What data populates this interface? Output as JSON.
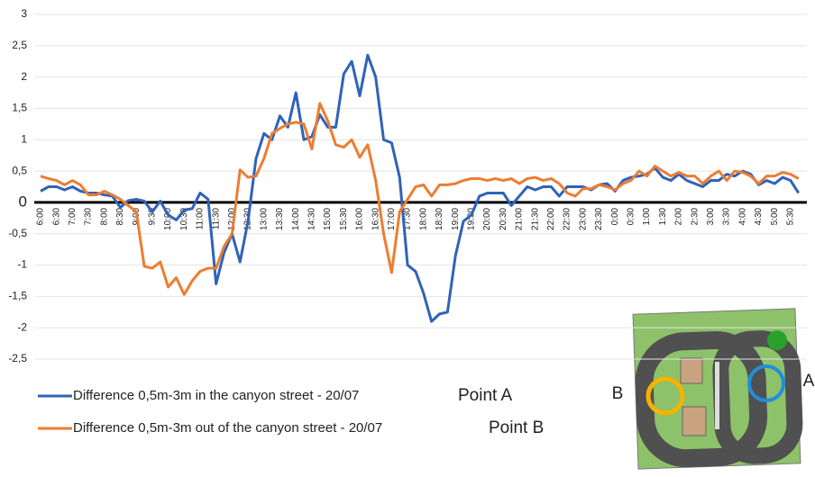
{
  "chart_data": {
    "type": "line",
    "categories": [
      "6:00",
      null,
      "6:30",
      null,
      "7:00",
      null,
      "7:30",
      null,
      "8:00",
      null,
      "8:30",
      null,
      "9:00",
      null,
      "9:30",
      null,
      "10:00",
      null,
      "10:30",
      null,
      "11:00",
      null,
      "11:30",
      null,
      "12:00",
      null,
      "12:30",
      null,
      "13:00",
      null,
      "13:30",
      null,
      "14:00",
      null,
      "14:30",
      null,
      "15:00",
      null,
      "15:30",
      null,
      "16:00",
      null,
      "16:30",
      null,
      "17:00",
      null,
      "17:30",
      null,
      "18:00",
      null,
      "18:30",
      null,
      "19:00",
      null,
      "19:30",
      null,
      "20:00",
      null,
      "20:30",
      null,
      "21:00",
      null,
      "21:30",
      null,
      "22:00",
      null,
      "22:30",
      null,
      "23:00",
      null,
      "23:30",
      null,
      "0:00",
      null,
      "0:30",
      null,
      "1:00",
      null,
      "1:30",
      null,
      "2:00",
      null,
      "2:30",
      null,
      "3:00",
      null,
      "3:30",
      null,
      "4:00",
      null,
      "4:30",
      null,
      "5:00",
      null,
      "5:30",
      null
    ],
    "series": [
      {
        "name": "Difference 0,5m-3m in the canyon street - 20/07",
        "color": "#2e63b8",
        "values": [
          0.18,
          0.25,
          0.25,
          0.2,
          0.25,
          0.18,
          0.15,
          0.15,
          0.12,
          0.1,
          -0.08,
          0.03,
          0.05,
          0.02,
          -0.15,
          0.02,
          -0.2,
          -0.28,
          -0.12,
          -0.1,
          0.15,
          0.05,
          -1.3,
          -0.8,
          -0.5,
          -0.95,
          -0.3,
          0.7,
          1.1,
          1.0,
          1.38,
          1.2,
          1.75,
          1.0,
          1.05,
          1.4,
          1.2,
          1.2,
          2.05,
          2.25,
          1.7,
          2.35,
          2.0,
          1.0,
          0.95,
          0.4,
          -1.0,
          -1.1,
          -1.45,
          -1.9,
          -1.78,
          -1.75,
          -0.85,
          -0.3,
          -0.2,
          0.1,
          0.15,
          0.15,
          0.15,
          -0.05,
          0.1,
          0.25,
          0.2,
          0.25,
          0.25,
          0.1,
          0.25,
          0.25,
          0.25,
          0.2,
          0.28,
          0.3,
          0.18,
          0.35,
          0.4,
          0.42,
          0.45,
          0.55,
          0.4,
          0.35,
          0.45,
          0.35,
          0.3,
          0.25,
          0.35,
          0.35,
          0.45,
          0.42,
          0.5,
          0.45,
          0.28,
          0.35,
          0.3,
          0.4,
          0.35,
          0.15
        ]
      },
      {
        "name": "Difference 0,5m-3m out of the canyon street - 20/07",
        "color": "#ed7d31",
        "values": [
          0.42,
          0.38,
          0.35,
          0.28,
          0.35,
          0.28,
          0.12,
          0.12,
          0.18,
          0.12,
          0.05,
          -0.05,
          -0.15,
          -1.02,
          -1.05,
          -0.95,
          -1.35,
          -1.2,
          -1.47,
          -1.25,
          -1.1,
          -1.05,
          -1.05,
          -0.7,
          -0.5,
          0.52,
          0.4,
          0.42,
          0.7,
          1.1,
          1.18,
          1.25,
          1.28,
          1.25,
          0.85,
          1.58,
          1.3,
          0.92,
          0.88,
          1.0,
          0.72,
          0.92,
          0.35,
          -0.5,
          -1.12,
          -0.15,
          0.05,
          0.25,
          0.28,
          0.1,
          0.28,
          0.28,
          0.3,
          0.35,
          0.38,
          0.38,
          0.35,
          0.38,
          0.35,
          0.38,
          0.3,
          0.38,
          0.4,
          0.35,
          0.38,
          0.3,
          0.15,
          0.1,
          0.22,
          0.22,
          0.28,
          0.25,
          0.2,
          0.3,
          0.35,
          0.5,
          0.42,
          0.58,
          0.5,
          0.42,
          0.48,
          0.42,
          0.42,
          0.3,
          0.42,
          0.5,
          0.35,
          0.5,
          0.48,
          0.42,
          0.3,
          0.42,
          0.42,
          0.48,
          0.45,
          0.38
        ]
      }
    ],
    "ylim": [
      -2.5,
      3
    ],
    "yticks": [
      {
        "value": -2.5,
        "label": "-2,5"
      },
      -2,
      {
        "value": -1.5,
        "label": "-1,5"
      },
      -1,
      {
        "value": -0.5,
        "label": "-0,5"
      },
      0,
      {
        "value": 0.5,
        "label": "0,5"
      },
      1,
      {
        "value": 1.5,
        "label": "1,5"
      },
      2,
      {
        "value": 2.5,
        "label": "2,5"
      },
      3
    ],
    "grid": true,
    "annotations": [
      "Point A",
      "Point B",
      "B",
      "A"
    ]
  }
}
